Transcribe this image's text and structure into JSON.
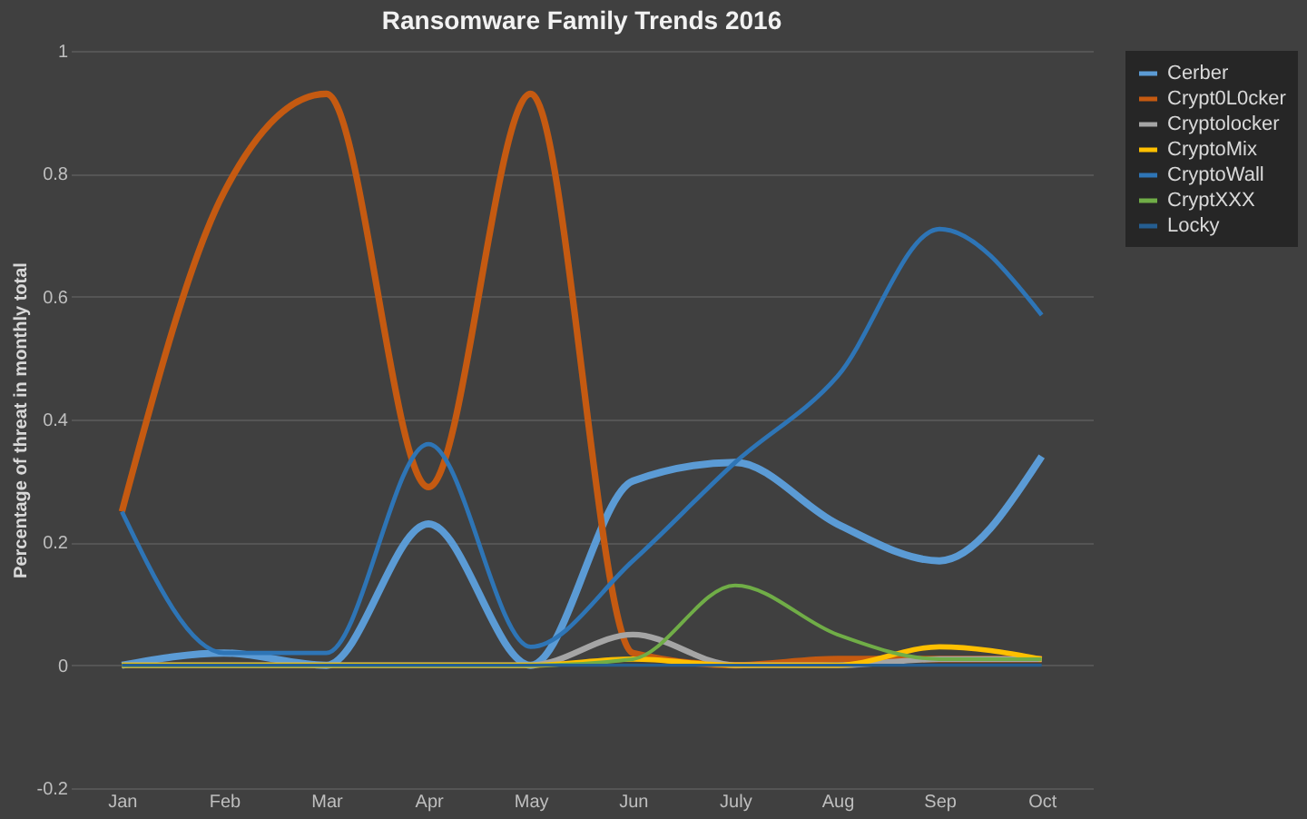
{
  "chart_data": {
    "type": "line",
    "title": "Ransomware Family Trends 2016",
    "ylabel": "Percentage of threat in monthly total",
    "categories": [
      "Jan",
      "Feb",
      "Mar",
      "Apr",
      "May",
      "Jun",
      "July",
      "Aug",
      "Sep",
      "Oct"
    ],
    "series": [
      {
        "name": "Cerber",
        "color": "#5b9bd5",
        "values": [
          0,
          0.02,
          0,
          0.23,
          0,
          0.3,
          0.33,
          0.23,
          0.17,
          0.34
        ]
      },
      {
        "name": "Crypt0L0cker",
        "color": "#c55a11",
        "values": [
          0.25,
          0.77,
          0.93,
          0.29,
          0.93,
          0.02,
          0,
          0.01,
          0.01,
          0.01
        ]
      },
      {
        "name": "Cryptolocker",
        "color": "#a5a5a5",
        "values": [
          0,
          0,
          0,
          0,
          0,
          0.05,
          0,
          0,
          0.01,
          0.01
        ]
      },
      {
        "name": "CryptoMix",
        "color": "#ffc000",
        "values": [
          0,
          0,
          0,
          0,
          0,
          0.01,
          0,
          0,
          0.03,
          0.01
        ]
      },
      {
        "name": "CryptoWall",
        "color": "#2e75b6",
        "values": [
          0.25,
          0.02,
          0.02,
          0.36,
          0.03,
          0.17,
          0.33,
          0.47,
          0.71,
          0.57
        ]
      },
      {
        "name": "CryptXXX",
        "color": "#70ad47",
        "values": [
          0,
          0,
          0,
          0,
          0,
          0.01,
          0.13,
          0.05,
          0.01,
          0.01
        ]
      },
      {
        "name": "Locky",
        "color": "#255e91",
        "values": [
          0,
          0,
          0,
          0,
          0,
          0,
          0,
          0,
          0,
          0
        ]
      }
    ],
    "ylim": [
      -0.2,
      1
    ],
    "yticks": [
      -0.2,
      0,
      0.2,
      0.4,
      0.6,
      0.8,
      1
    ],
    "grid": "y",
    "legend": "right",
    "marker": "none",
    "line_style": "solid"
  }
}
